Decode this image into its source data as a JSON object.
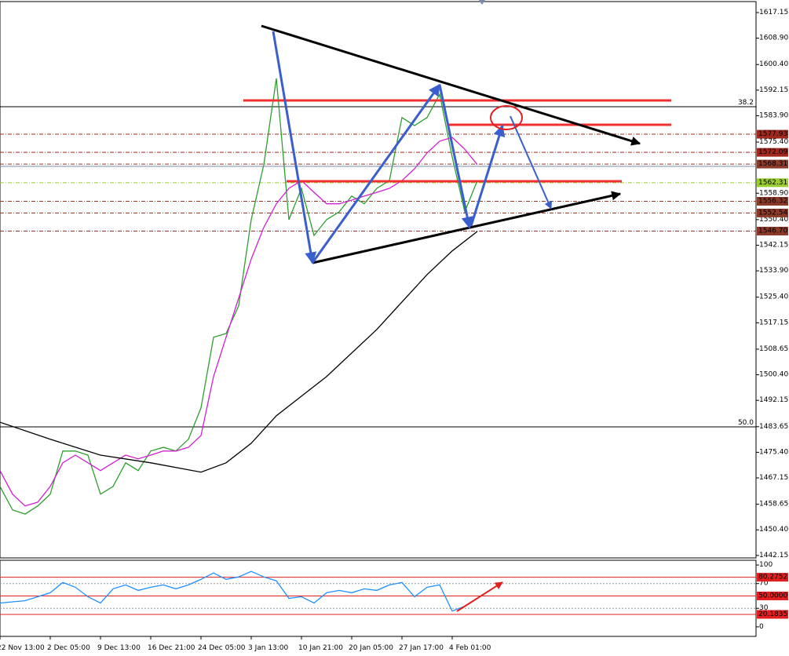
{
  "chart_data": [
    {
      "type": "line",
      "xlim": [
        0,
        240.75
      ],
      "ylim": [
        1441.1,
        1621.2
      ],
      "xticks": [
        {
          "value": 0,
          "label": "22 Nov 13:00"
        },
        {
          "value": 16,
          "label": "2 Dec 05:00"
        },
        {
          "value": 32,
          "label": "9 Dec 13:00"
        },
        {
          "value": 48,
          "label": "16 Dec 21:00"
        },
        {
          "value": 64,
          "label": "24 Dec 05:00"
        },
        {
          "value": 80,
          "label": "3 Jan 13:00"
        },
        {
          "value": 96,
          "label": "10 Jan 21:00"
        },
        {
          "value": 112,
          "label": "20 Jan 05:00"
        },
        {
          "value": 128,
          "label": "27 Jan 17:00"
        },
        {
          "value": 144,
          "label": "4 Feb 01:00"
        }
      ],
      "yticks": [
        1617.15,
        {
          "value": 1608.9,
          "label": "1608.90"
        },
        {
          "value": 1600.4,
          "label": "1600.40"
        },
        1592.15,
        {
          "value": 1583.9,
          "label": "1583.90"
        },
        {
          "value": 1575.4,
          "label": "1575.40"
        },
        {
          "value": 1558.9,
          "label": "1558.90"
        },
        {
          "value": 1550.4,
          "label": "1550.40"
        },
        1542.15,
        {
          "value": 1533.9,
          "label": "1533.90"
        },
        {
          "value": 1525.4,
          "label": "1525.40"
        },
        1517.15,
        1508.65,
        {
          "value": 1500.4,
          "label": "1500.40"
        },
        1492.15,
        1483.65,
        {
          "value": 1475.4,
          "label": "1475.40"
        },
        1467.15,
        1458.65,
        {
          "value": 1450.4,
          "label": "1450.40"
        },
        1442.15
      ],
      "series": [
        {
          "color": "#2e9e2e",
          "x": [
            0,
            4,
            8,
            12,
            16,
            20,
            24,
            28,
            32,
            36,
            40,
            44,
            48,
            52,
            56,
            60,
            64,
            68,
            72,
            76,
            80,
            84,
            88,
            92,
            96,
            100,
            104,
            108,
            112,
            116,
            120,
            124,
            128,
            132,
            136,
            140,
            144,
            148,
            152
          ],
          "values": [
            1464.4,
            1456.8,
            1455.5,
            1458.1,
            1461.9,
            1475.8,
            1475.8,
            1474.5,
            1461.9,
            1464.4,
            1472.0,
            1469.5,
            1475.8,
            1477.0,
            1475.8,
            1479.6,
            1489.7,
            1512.5,
            1513.7,
            1522.6,
            1550.4,
            1568.1,
            1595.9,
            1550.4,
            1560.5,
            1545.3,
            1550.4,
            1552.9,
            1558.0,
            1555.5,
            1560.5,
            1563.0,
            1583.3,
            1580.7,
            1583.3,
            1590.8,
            1570.6,
            1552.9,
            1563.0
          ]
        },
        {
          "color": "#d020d0",
          "x": [
            0,
            4,
            8,
            12,
            16,
            20,
            24,
            28,
            32,
            36,
            40,
            44,
            48,
            52,
            56,
            60,
            64,
            68,
            72,
            76,
            80,
            84,
            88,
            92,
            96,
            100,
            104,
            108,
            112,
            116,
            120,
            124,
            128,
            132,
            136,
            140,
            144,
            148,
            152
          ],
          "values": [
            1469.5,
            1461.9,
            1458.1,
            1459.3,
            1464.4,
            1472.0,
            1474.5,
            1472.0,
            1469.5,
            1472.0,
            1474.5,
            1473.3,
            1474.5,
            1475.8,
            1475.8,
            1477.0,
            1480.8,
            1499.8,
            1512.5,
            1525.1,
            1537.7,
            1547.9,
            1555.5,
            1560.5,
            1563.0,
            1559.2,
            1555.5,
            1555.5,
            1556.7,
            1558.0,
            1559.2,
            1560.5,
            1563.0,
            1566.8,
            1571.9,
            1575.7,
            1576.9,
            1573.1,
            1568.1
          ]
        },
        {
          "color": "#000000",
          "x": [
            0,
            16,
            32,
            48,
            64,
            72,
            80,
            88,
            104,
            120,
            136,
            144,
            152
          ],
          "values": [
            1485.1,
            1479.6,
            1474.5,
            1472.0,
            1469.0,
            1472.0,
            1478.3,
            1487.2,
            1499.8,
            1515.0,
            1532.7,
            1540.3,
            1546.6
          ]
        }
      ],
      "levels": [
        {
          "value": 1577.93,
          "color": "#a0281e"
        },
        {
          "value": 1572.09,
          "color": "#a0281e"
        },
        {
          "value": 1568.31,
          "color": "#8b3a2a"
        },
        {
          "value": 1562.31,
          "color": "#9acd32"
        },
        {
          "value": 1556.32,
          "color": "#8b3a2a"
        },
        {
          "value": 1552.54,
          "color": "#8b3a2a"
        },
        {
          "value": 1546.7,
          "label": "1546.70",
          "color": "#8b3a2a"
        }
      ],
      "fib_levels": [
        {
          "label": "38.2",
          "value": 1586.8
        },
        {
          "label": "50.0",
          "value": 1483.6
        }
      ]
    },
    {
      "type": "line",
      "xlim": [
        0,
        240.75
      ],
      "ylim": [
        -15.4,
        107.7
      ],
      "yticks": [
        100,
        70,
        30,
        0
      ],
      "series": [
        {
          "color": "#1e90ff",
          "x": [
            0,
            8,
            16,
            20,
            24,
            28,
            32,
            36,
            40,
            44,
            48,
            52,
            56,
            60,
            64,
            68,
            72,
            76,
            80,
            84,
            88,
            92,
            96,
            100,
            104,
            108,
            112,
            116,
            120,
            124,
            128,
            132,
            136,
            140,
            144,
            148,
            152
          ],
          "values": [
            38.5,
            42.3,
            55.1,
            71.8,
            64.1,
            48.7,
            38.5,
            61.5,
            67.9,
            59.0,
            64.1,
            67.9,
            61.5,
            67.9,
            76.9,
            87.2,
            76.9,
            80.8,
            89.7,
            80.8,
            74.4,
            46.2,
            48.7,
            38.5,
            55.1,
            59.0,
            55.1,
            61.5,
            59.0,
            67.9,
            71.8,
            48.7,
            64.1,
            67.9,
            25.6,
            33.3,
            46.2
          ]
        }
      ],
      "levels": [
        {
          "value": 80.2752,
          "color": "#e02020"
        },
        {
          "value": 50,
          "label": "50.0000",
          "color": "#e02020"
        },
        {
          "value": 20.1835,
          "color": "#e02020"
        }
      ]
    }
  ]
}
